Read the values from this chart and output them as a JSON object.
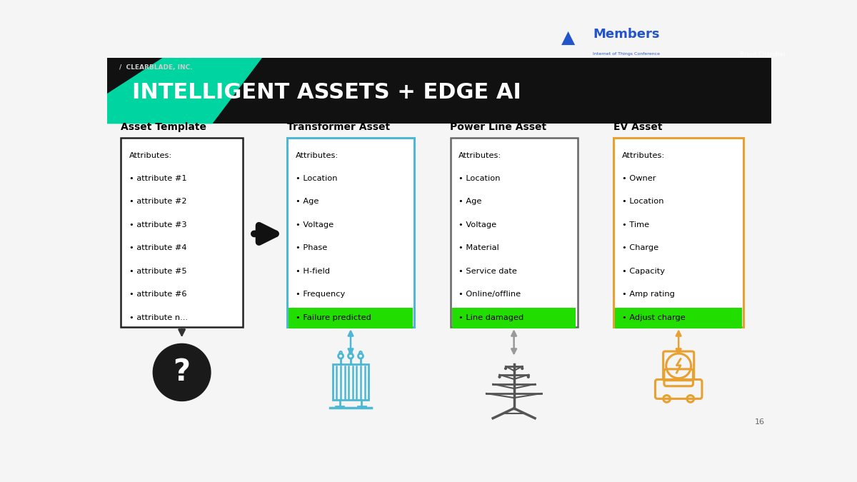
{
  "title": "INTELLIGENT ASSETS + EDGE AI",
  "bg_color": "#f5f5f5",
  "slide_num": "16",
  "accent_color": "#00d4a0",
  "asset_template": {
    "label": "Asset Template",
    "box_color": "#222222",
    "items": [
      "Attributes:",
      "attribute #1",
      "attribute #2",
      "attribute #3",
      "attribute #4",
      "attribute #5",
      "attribute #6",
      "attribute n..."
    ]
  },
  "transformer": {
    "label": "Transformer Asset",
    "box_color": "#4db8d4",
    "items": [
      "Attributes:",
      "Location",
      "Age",
      "Voltage",
      "Phase",
      "H-field",
      "Frequency",
      "Failure predicted"
    ],
    "icon_color": "#4db8d4",
    "arrow_color": "#4db8d4"
  },
  "powerline": {
    "label": "Power Line Asset",
    "box_color": "#666666",
    "items": [
      "Attributes:",
      "Location",
      "Age",
      "Voltage",
      "Material",
      "Service date",
      "Online/offline",
      "Line damaged"
    ],
    "icon_color": "#555555",
    "arrow_color": "#999999"
  },
  "ev": {
    "label": "EV Asset",
    "box_color": "#e8a030",
    "items": [
      "Attributes:",
      "Owner",
      "Location",
      "Time",
      "Charge",
      "Capacity",
      "Amp rating",
      "Adjust charge"
    ],
    "icon_color": "#e8a030",
    "arrow_color": "#e8a030"
  },
  "highlight_color": "#22dd00"
}
